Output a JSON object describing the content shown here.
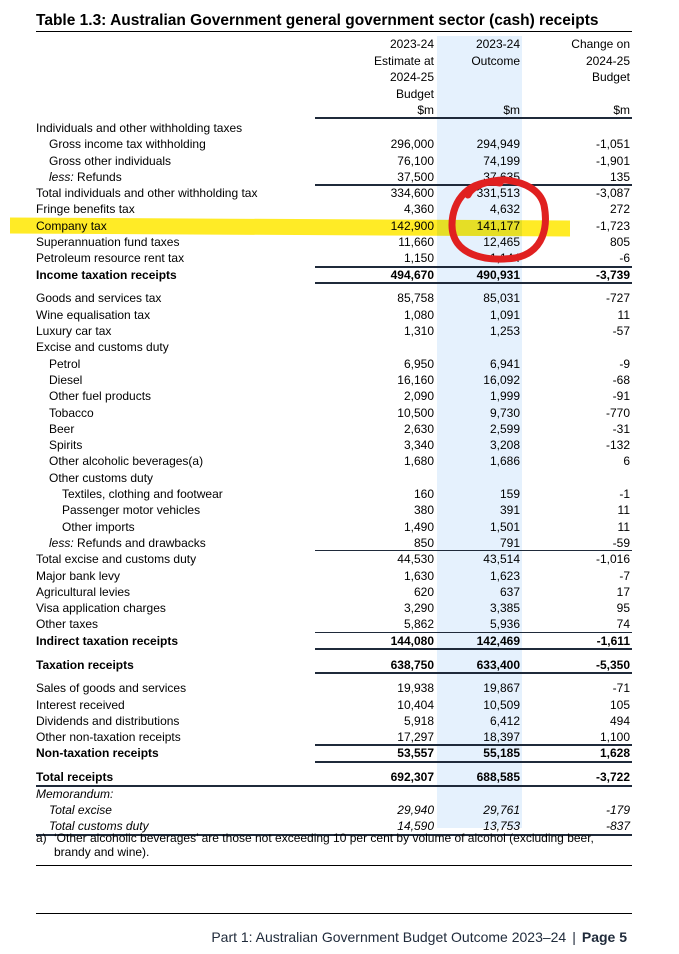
{
  "title": "Table 1.3: Australian Government general government sector (cash) receipts",
  "columns": [
    {
      "lines": [
        "2023-24",
        "Estimate at",
        "2024-25",
        "Budget"
      ],
      "unit": "$m"
    },
    {
      "lines": [
        "2023-24",
        "Outcome"
      ],
      "unit": "$m"
    },
    {
      "lines": [
        "Change on",
        "2024-25",
        "Budget"
      ],
      "unit": "$m"
    }
  ],
  "rows": [
    {
      "label": "Individuals and other withholding taxes",
      "values": [
        "",
        "",
        ""
      ]
    },
    {
      "label": "Gross income tax withholding",
      "indent": 1,
      "values": [
        "296,000",
        "294,949",
        "-1,051"
      ]
    },
    {
      "label": "Gross other individuals",
      "indent": 1,
      "values": [
        "76,100",
        "74,199",
        "-1,901"
      ]
    },
    {
      "label_prefix": "less:",
      "label": " Refunds",
      "indent": 1,
      "values": [
        "37,500",
        "37,635",
        "135"
      ]
    },
    {
      "label": "Total individuals and other withholding tax",
      "values": [
        "334,600",
        "331,513",
        "-3,087"
      ],
      "rule_above": "thick"
    },
    {
      "label": "Fringe benefits tax",
      "values": [
        "4,360",
        "4,632",
        "272"
      ]
    },
    {
      "label": "Company tax",
      "values": [
        "142,900",
        "141,177",
        "-1,723"
      ],
      "highlighted": true
    },
    {
      "label": "Superannuation fund taxes",
      "values": [
        "11,660",
        "12,465",
        "805"
      ]
    },
    {
      "label": "Petroleum resource rent tax",
      "values": [
        "1,150",
        "1,144",
        "-6"
      ]
    },
    {
      "label": "Income taxation receipts",
      "bold": true,
      "values": [
        "494,670",
        "490,931",
        "-3,739"
      ],
      "rule_above": "thick",
      "rule_below": "thick"
    },
    {
      "label": "Goods and services tax",
      "gap": true,
      "values": [
        "85,758",
        "85,031",
        "-727"
      ]
    },
    {
      "label": "Wine equalisation tax",
      "values": [
        "1,080",
        "1,091",
        "11"
      ]
    },
    {
      "label": "Luxury car tax",
      "values": [
        "1,310",
        "1,253",
        "-57"
      ]
    },
    {
      "label": "Excise and customs duty",
      "values": [
        "",
        "",
        ""
      ]
    },
    {
      "label": "Petrol",
      "indent": 1,
      "values": [
        "6,950",
        "6,941",
        "-9"
      ]
    },
    {
      "label": "Diesel",
      "indent": 1,
      "values": [
        "16,160",
        "16,092",
        "-68"
      ]
    },
    {
      "label": "Other fuel products",
      "indent": 1,
      "values": [
        "2,090",
        "1,999",
        "-91"
      ]
    },
    {
      "label": "Tobacco",
      "indent": 1,
      "values": [
        "10,500",
        "9,730",
        "-770"
      ]
    },
    {
      "label": "Beer",
      "indent": 1,
      "values": [
        "2,630",
        "2,599",
        "-31"
      ]
    },
    {
      "label": "Spirits",
      "indent": 1,
      "values": [
        "3,340",
        "3,208",
        "-132"
      ]
    },
    {
      "label": "Other alcoholic beverages(a)",
      "indent": 1,
      "values": [
        "1,680",
        "1,686",
        "6"
      ]
    },
    {
      "label": "Other customs duty",
      "indent": 1,
      "values": [
        "",
        "",
        ""
      ]
    },
    {
      "label": "Textiles, clothing and footwear",
      "indent": 2,
      "values": [
        "160",
        "159",
        "-1"
      ]
    },
    {
      "label": "Passenger motor vehicles",
      "indent": 2,
      "values": [
        "380",
        "391",
        "11"
      ]
    },
    {
      "label": "Other imports",
      "indent": 2,
      "values": [
        "1,490",
        "1,501",
        "11"
      ]
    },
    {
      "label_prefix": "less:",
      "label": " Refunds and drawbacks",
      "indent": 1,
      "values": [
        "850",
        "791",
        "-59"
      ]
    },
    {
      "label": "Total excise and customs duty",
      "values": [
        "44,530",
        "43,514",
        "-1,016"
      ],
      "rule_above": "thin"
    },
    {
      "label": "Major bank levy",
      "values": [
        "1,630",
        "1,623",
        "-7"
      ]
    },
    {
      "label": "Agricultural levies",
      "values": [
        "620",
        "637",
        "17"
      ]
    },
    {
      "label": "Visa application charges",
      "values": [
        "3,290",
        "3,385",
        "95"
      ]
    },
    {
      "label": "Other taxes",
      "values": [
        "5,862",
        "5,936",
        "74"
      ]
    },
    {
      "label": "Indirect taxation receipts",
      "bold": true,
      "values": [
        "144,080",
        "142,469",
        "-1,611"
      ],
      "rule_above": "thin",
      "rule_below": "thick"
    },
    {
      "label": "Taxation receipts",
      "bold": true,
      "gap": true,
      "values": [
        "638,750",
        "633,400",
        "-5,350"
      ],
      "rule_below": "thick"
    },
    {
      "label": "Sales of goods and services",
      "gap": true,
      "values": [
        "19,938",
        "19,867",
        "-71"
      ]
    },
    {
      "label": "Interest received",
      "values": [
        "10,404",
        "10,509",
        "105"
      ]
    },
    {
      "label": "Dividends and distributions",
      "values": [
        "5,918",
        "6,412",
        "494"
      ]
    },
    {
      "label": "Other non-taxation receipts",
      "values": [
        "17,297",
        "18,397",
        "1,100"
      ]
    },
    {
      "label": "Non-taxation receipts",
      "bold": true,
      "values": [
        "53,557",
        "55,185",
        "1,628"
      ],
      "rule_above": "thick",
      "rule_below": "thick"
    },
    {
      "label": "Total receipts",
      "bold": true,
      "gap": true,
      "values": [
        "692,307",
        "688,585",
        "-3,722"
      ],
      "rule_below": "full"
    },
    {
      "label": "Memorandum:",
      "italic": true,
      "values": [
        "",
        "",
        ""
      ]
    },
    {
      "label": "Total excise",
      "italic": true,
      "indent": 1,
      "values": [
        "29,940",
        "29,761",
        "-179"
      ]
    },
    {
      "label": "Total customs duty",
      "italic": true,
      "indent": 1,
      "values": [
        "14,590",
        "13,753",
        "-837"
      ],
      "rule_below": "full"
    }
  ],
  "footnote": {
    "marker": "a)",
    "text": "‘Other alcoholic beverages’ are those not exceeding 10 per cent by volume of alcohol (excluding beer, brandy and wine)."
  },
  "page_footer": {
    "text": "Part 1: Australian Government Budget Outcome 2023–24",
    "separator": "|",
    "page": "Page 5"
  },
  "annotations": {
    "highlight_color": "#ffe600",
    "circle_color": "#e02020",
    "highlighted_row": "Company tax",
    "circled_column": "2023-24 Outcome"
  }
}
